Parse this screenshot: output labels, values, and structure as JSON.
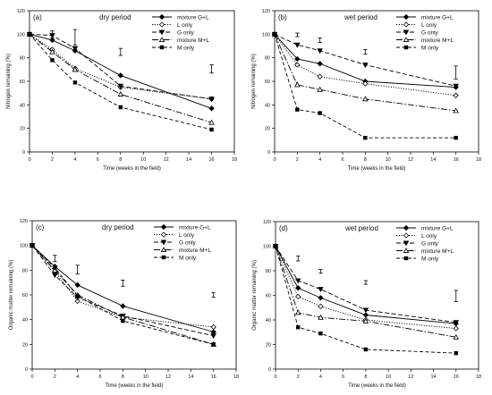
{
  "figure": {
    "legend_styles": [
      {
        "name": "mixture G+L",
        "dash": "",
        "marker": "diamond-filled"
      },
      {
        "name": "L only",
        "dash": "1.2,1.6",
        "marker": "diamond-open"
      },
      {
        "name": "G only",
        "dash": "5,2.5",
        "marker": "tri-down-filled"
      },
      {
        "name": "mixture M+L",
        "dash": "7,2,1.5,2",
        "marker": "tri-up-open"
      },
      {
        "name": "M only",
        "dash": "4,2.5",
        "marker": "square-filled"
      }
    ]
  },
  "chart_data": [
    {
      "type": "line",
      "panel": "(a)",
      "title": "dry period",
      "xlabel": "Time (weeks in the field)",
      "ylabel": "Nitrogen remaining (%)",
      "xlim": [
        0,
        18
      ],
      "ylim": [
        0,
        120
      ],
      "xticks": [
        0,
        2,
        4,
        6,
        8,
        10,
        12,
        14,
        16,
        18
      ],
      "yticks": [
        0,
        20,
        40,
        60,
        80,
        100,
        120
      ],
      "legend_position": "top-right",
      "x": [
        0,
        2,
        4,
        8,
        16
      ],
      "series": [
        {
          "name": "mixture G+L",
          "values": [
            100,
            95,
            86,
            65,
            37
          ]
        },
        {
          "name": "L only",
          "values": [
            100,
            87,
            71,
            55,
            45
          ]
        },
        {
          "name": "G only",
          "values": [
            100,
            99,
            88,
            56,
            45
          ]
        },
        {
          "name": "mixture M+L",
          "values": [
            100,
            85,
            70,
            49,
            25
          ]
        },
        {
          "name": "M only",
          "values": [
            100,
            78,
            59,
            38,
            19
          ]
        }
      ],
      "error_bars": [
        {
          "x": 2,
          "low": 97,
          "high": 103
        },
        {
          "x": 4,
          "low": 91,
          "high": 104
        },
        {
          "x": 8,
          "low": 82,
          "high": 88
        },
        {
          "x": 16,
          "low": 67,
          "high": 74
        }
      ]
    },
    {
      "type": "line",
      "panel": "(b)",
      "title": "wet period",
      "xlabel": "Time (weeks in the field)",
      "ylabel": "Nitrogen remaining (%)",
      "xlim": [
        0,
        18
      ],
      "ylim": [
        0,
        120
      ],
      "xticks": [
        0,
        2,
        4,
        6,
        8,
        10,
        12,
        14,
        16,
        18
      ],
      "yticks": [
        0,
        20,
        40,
        60,
        80,
        100,
        120
      ],
      "legend_position": "top-right",
      "x": [
        0,
        2,
        4,
        8,
        16
      ],
      "series": [
        {
          "name": "mixture G+L",
          "values": [
            100,
            79,
            75,
            60,
            55
          ]
        },
        {
          "name": "L only",
          "values": [
            100,
            74,
            64,
            58,
            48
          ]
        },
        {
          "name": "G only",
          "values": [
            100,
            91,
            86,
            74,
            56
          ]
        },
        {
          "name": "mixture M+L",
          "values": [
            100,
            57,
            53,
            45,
            35
          ]
        },
        {
          "name": "M only",
          "values": [
            100,
            36,
            33,
            12,
            12
          ]
        }
      ],
      "error_bars": [
        {
          "x": 2,
          "low": 98,
          "high": 101
        },
        {
          "x": 4,
          "low": 93,
          "high": 97
        },
        {
          "x": 8,
          "low": 83,
          "high": 87
        },
        {
          "x": 16,
          "low": 62,
          "high": 73
        }
      ]
    },
    {
      "type": "line",
      "panel": "(c)",
      "title": "dry period",
      "xlabel": "Time (weeks in the field)",
      "ylabel": "Organic matter remaining (%)",
      "xlim": [
        0,
        18
      ],
      "ylim": [
        0,
        120
      ],
      "xticks": [
        0,
        2,
        4,
        6,
        8,
        10,
        12,
        14,
        16,
        18
      ],
      "yticks": [
        0,
        20,
        40,
        60,
        80,
        100,
        120
      ],
      "legend_position": "top-right",
      "x": [
        0,
        2,
        4,
        8,
        16
      ],
      "series": [
        {
          "name": "mixture G+L",
          "values": [
            100,
            83,
            68,
            51,
            30
          ]
        },
        {
          "name": "L only",
          "values": [
            100,
            79,
            55,
            42,
            34
          ]
        },
        {
          "name": "G only",
          "values": [
            100,
            76,
            58,
            43,
            27
          ]
        },
        {
          "name": "mixture M+L",
          "values": [
            100,
            80,
            60,
            42,
            20
          ]
        },
        {
          "name": "M only",
          "values": [
            100,
            82,
            59,
            39,
            20
          ]
        }
      ],
      "error_bars": [
        {
          "x": 2,
          "low": 87,
          "high": 92
        },
        {
          "x": 4,
          "low": 77,
          "high": 84
        },
        {
          "x": 8,
          "low": 67,
          "high": 72
        },
        {
          "x": 16,
          "low": 58,
          "high": 62
        }
      ]
    },
    {
      "type": "line",
      "panel": "(d)",
      "title": "wet period",
      "xlabel": "Time (weeks in the field)",
      "ylabel": "Organic matter remaining (%)",
      "xlim": [
        0,
        18
      ],
      "ylim": [
        0,
        120
      ],
      "xticks": [
        0,
        2,
        4,
        6,
        8,
        10,
        12,
        14,
        16,
        18
      ],
      "yticks": [
        0,
        20,
        40,
        60,
        80,
        100,
        120
      ],
      "legend_position": "top-right",
      "x": [
        0,
        2,
        4,
        8,
        16
      ],
      "series": [
        {
          "name": "mixture G+L",
          "values": [
            100,
            66,
            58,
            44,
            37
          ]
        },
        {
          "name": "L only",
          "values": [
            100,
            59,
            51,
            40,
            33
          ]
        },
        {
          "name": "G only",
          "values": [
            100,
            72,
            65,
            48,
            38
          ]
        },
        {
          "name": "mixture M+L",
          "values": [
            100,
            46,
            42,
            39,
            26
          ]
        },
        {
          "name": "M only",
          "values": [
            100,
            34,
            29,
            16,
            13
          ]
        }
      ],
      "error_bars": [
        {
          "x": 2,
          "low": 88,
          "high": 92
        },
        {
          "x": 4,
          "low": 78,
          "high": 81
        },
        {
          "x": 8,
          "low": 69,
          "high": 72
        },
        {
          "x": 16,
          "low": 55,
          "high": 64
        }
      ]
    }
  ]
}
